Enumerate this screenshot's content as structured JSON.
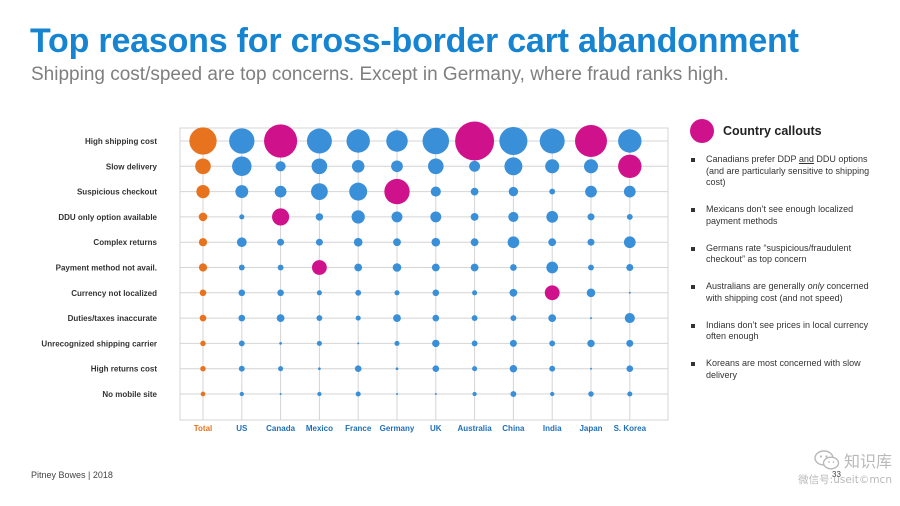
{
  "header": {
    "title": "Top reasons for cross-border cart abandonment",
    "subtitle": "Shipping cost/speed are top concerns. Except in Germany, where fraud ranks high."
  },
  "colors": {
    "total": "#e8731f",
    "country": "#3a8fd9",
    "callout": "#d0118c",
    "grid": "#d4d4d4",
    "category_label": "#1f6fb8"
  },
  "chart_data": {
    "type": "bubble-grid",
    "title": "",
    "xlabel": "",
    "ylabel": "",
    "size_scale": "relative bubble size (max = 1.0)",
    "rows": [
      "High shipping cost",
      "Slow delivery",
      "Suspicious checkout",
      "DDU only option available",
      "Complex returns",
      "Payment method not avail.",
      "Currency not localized",
      "Duties/taxes inaccurate",
      "Unrecognized shipping carrier",
      "High returns cost",
      "No mobile site"
    ],
    "columns": [
      "Total",
      "US",
      "Canada",
      "Mexico",
      "France",
      "Germany",
      "UK",
      "Australia",
      "China",
      "India",
      "Japan",
      "S. Korea"
    ],
    "values": [
      [
        0.7,
        0.65,
        0.85,
        0.64,
        0.6,
        0.55,
        0.68,
        1.0,
        0.72,
        0.64,
        0.82,
        0.6
      ],
      [
        0.4,
        0.5,
        0.26,
        0.4,
        0.32,
        0.3,
        0.4,
        0.28,
        0.46,
        0.36,
        0.36,
        0.6
      ],
      [
        0.34,
        0.33,
        0.3,
        0.43,
        0.46,
        0.65,
        0.26,
        0.2,
        0.24,
        0.15,
        0.3,
        0.3
      ],
      [
        0.22,
        0.13,
        0.44,
        0.19,
        0.34,
        0.28,
        0.28,
        0.2,
        0.26,
        0.3,
        0.18,
        0.15
      ],
      [
        0.21,
        0.25,
        0.18,
        0.18,
        0.22,
        0.2,
        0.22,
        0.2,
        0.3,
        0.2,
        0.18,
        0.3
      ],
      [
        0.21,
        0.15,
        0.15,
        0.38,
        0.2,
        0.22,
        0.2,
        0.2,
        0.17,
        0.3,
        0.15,
        0.18
      ],
      [
        0.17,
        0.17,
        0.17,
        0.13,
        0.15,
        0.13,
        0.17,
        0.13,
        0.2,
        0.38,
        0.22,
        0.04
      ],
      [
        0.17,
        0.17,
        0.2,
        0.15,
        0.13,
        0.2,
        0.17,
        0.15,
        0.15,
        0.2,
        0.03,
        0.26
      ],
      [
        0.14,
        0.15,
        0.07,
        0.13,
        0.04,
        0.13,
        0.19,
        0.15,
        0.18,
        0.15,
        0.19,
        0.18
      ],
      [
        0.14,
        0.15,
        0.13,
        0.07,
        0.17,
        0.07,
        0.17,
        0.13,
        0.19,
        0.15,
        0.05,
        0.17
      ],
      [
        0.12,
        0.11,
        0.04,
        0.11,
        0.13,
        0.04,
        0.04,
        0.11,
        0.15,
        0.11,
        0.14,
        0.13
      ]
    ],
    "highlights": [
      {
        "row": 0,
        "col": 2
      },
      {
        "row": 0,
        "col": 7
      },
      {
        "row": 0,
        "col": 10
      },
      {
        "row": 1,
        "col": 11
      },
      {
        "row": 2,
        "col": 5
      },
      {
        "row": 3,
        "col": 2
      },
      {
        "row": 5,
        "col": 3
      },
      {
        "row": 6,
        "col": 9
      }
    ],
    "grid": true
  },
  "callouts": {
    "title": "Country callouts",
    "items": [
      [
        "Canadians prefer DDP ",
        "and",
        " DDU options (and are particularly sensitive to shipping cost)"
      ],
      [
        "Mexicans don’t see enough localized payment methods"
      ],
      [
        "Germans rate “suspicious/fraudulent checkout” as top concern"
      ],
      [
        "Australians are generally ",
        "only",
        " concerned with shipping cost (and not speed)"
      ],
      [
        "Indians don’t see prices in local currency often enough"
      ],
      [
        "Koreans are most concerned with slow delivery"
      ]
    ]
  },
  "footer": {
    "source": "Pitney Bowes | 2018",
    "page": "33"
  },
  "watermark": {
    "name": "知识库",
    "id": "微信号:useit©mcn",
    "icon": "wechat-icon"
  }
}
